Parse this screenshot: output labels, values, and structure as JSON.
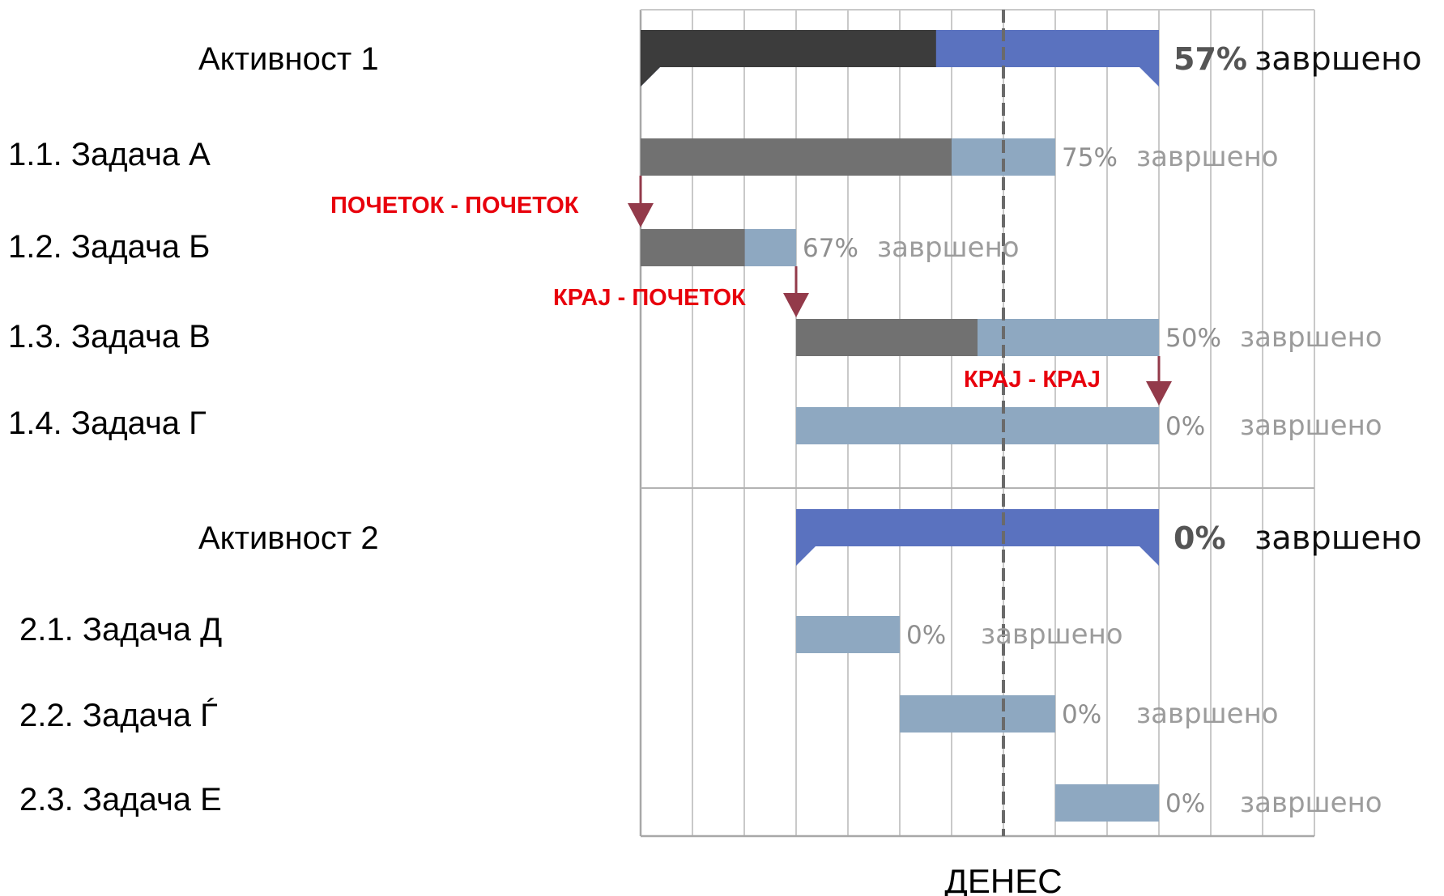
{
  "chart_data": {
    "type": "gantt",
    "today_label": "ДЕНЕС",
    "today": 7,
    "x_range": [
      0,
      13
    ],
    "grid": true,
    "colors": {
      "summary_done": "#3c3c3c",
      "summary_remaining": "#5a72bf",
      "task_done": "#717171",
      "task_remaining": "#8ea8c1",
      "dependency_arrow": "#933a4a",
      "dependency_label": "#e8000c"
    },
    "rows": [
      {
        "label": "Активност 1",
        "kind": "summary",
        "start": 0,
        "end": 10,
        "progress": 0.57,
        "percent_label": "57%",
        "status_word": "завршено"
      },
      {
        "label": "1.1. Задача А",
        "kind": "task",
        "start": 0,
        "end": 8,
        "progress": 0.75,
        "percent_label": "75%",
        "status_word": "завршено"
      },
      {
        "label": "1.2. Задача Б",
        "kind": "task",
        "start": 0,
        "end": 3,
        "progress": 0.67,
        "percent_label": "67%",
        "status_word": "завршено"
      },
      {
        "label": "1.3. Задача В",
        "kind": "task",
        "start": 3,
        "end": 10,
        "progress": 0.5,
        "percent_label": "50%",
        "status_word": "завршено"
      },
      {
        "label": "1.4. Задача Г",
        "kind": "task",
        "start": 3,
        "end": 10,
        "progress": 0,
        "percent_label": "0%",
        "status_word": "завршено"
      },
      {
        "label": "Активност 2",
        "kind": "summary",
        "start": 3,
        "end": 10,
        "progress": 0,
        "percent_label": "0%",
        "status_word": "завршено"
      },
      {
        "label": "2.1. Задача Д",
        "kind": "task",
        "start": 3,
        "end": 5,
        "progress": 0,
        "percent_label": "0%",
        "status_word": "завршено"
      },
      {
        "label": "2.2. Задача Ѓ",
        "kind": "task",
        "start": 5,
        "end": 8,
        "progress": 0,
        "percent_label": "0%",
        "status_word": "завршено"
      },
      {
        "label": "2.3. Задача Е",
        "kind": "task",
        "start": 8,
        "end": 10,
        "progress": 0,
        "percent_label": "0%",
        "status_word": "завршено"
      }
    ],
    "dependencies": [
      {
        "label": "ПОЧЕТОК - ПОЧЕТОК",
        "from_row": 1,
        "to_row": 2
      },
      {
        "label": "КРАЈ - ПОЧЕТОК",
        "from_row": 2,
        "to_row": 3
      },
      {
        "label": "КРАЈ - КРАЈ",
        "from_row": 3,
        "to_row": 4
      }
    ]
  }
}
